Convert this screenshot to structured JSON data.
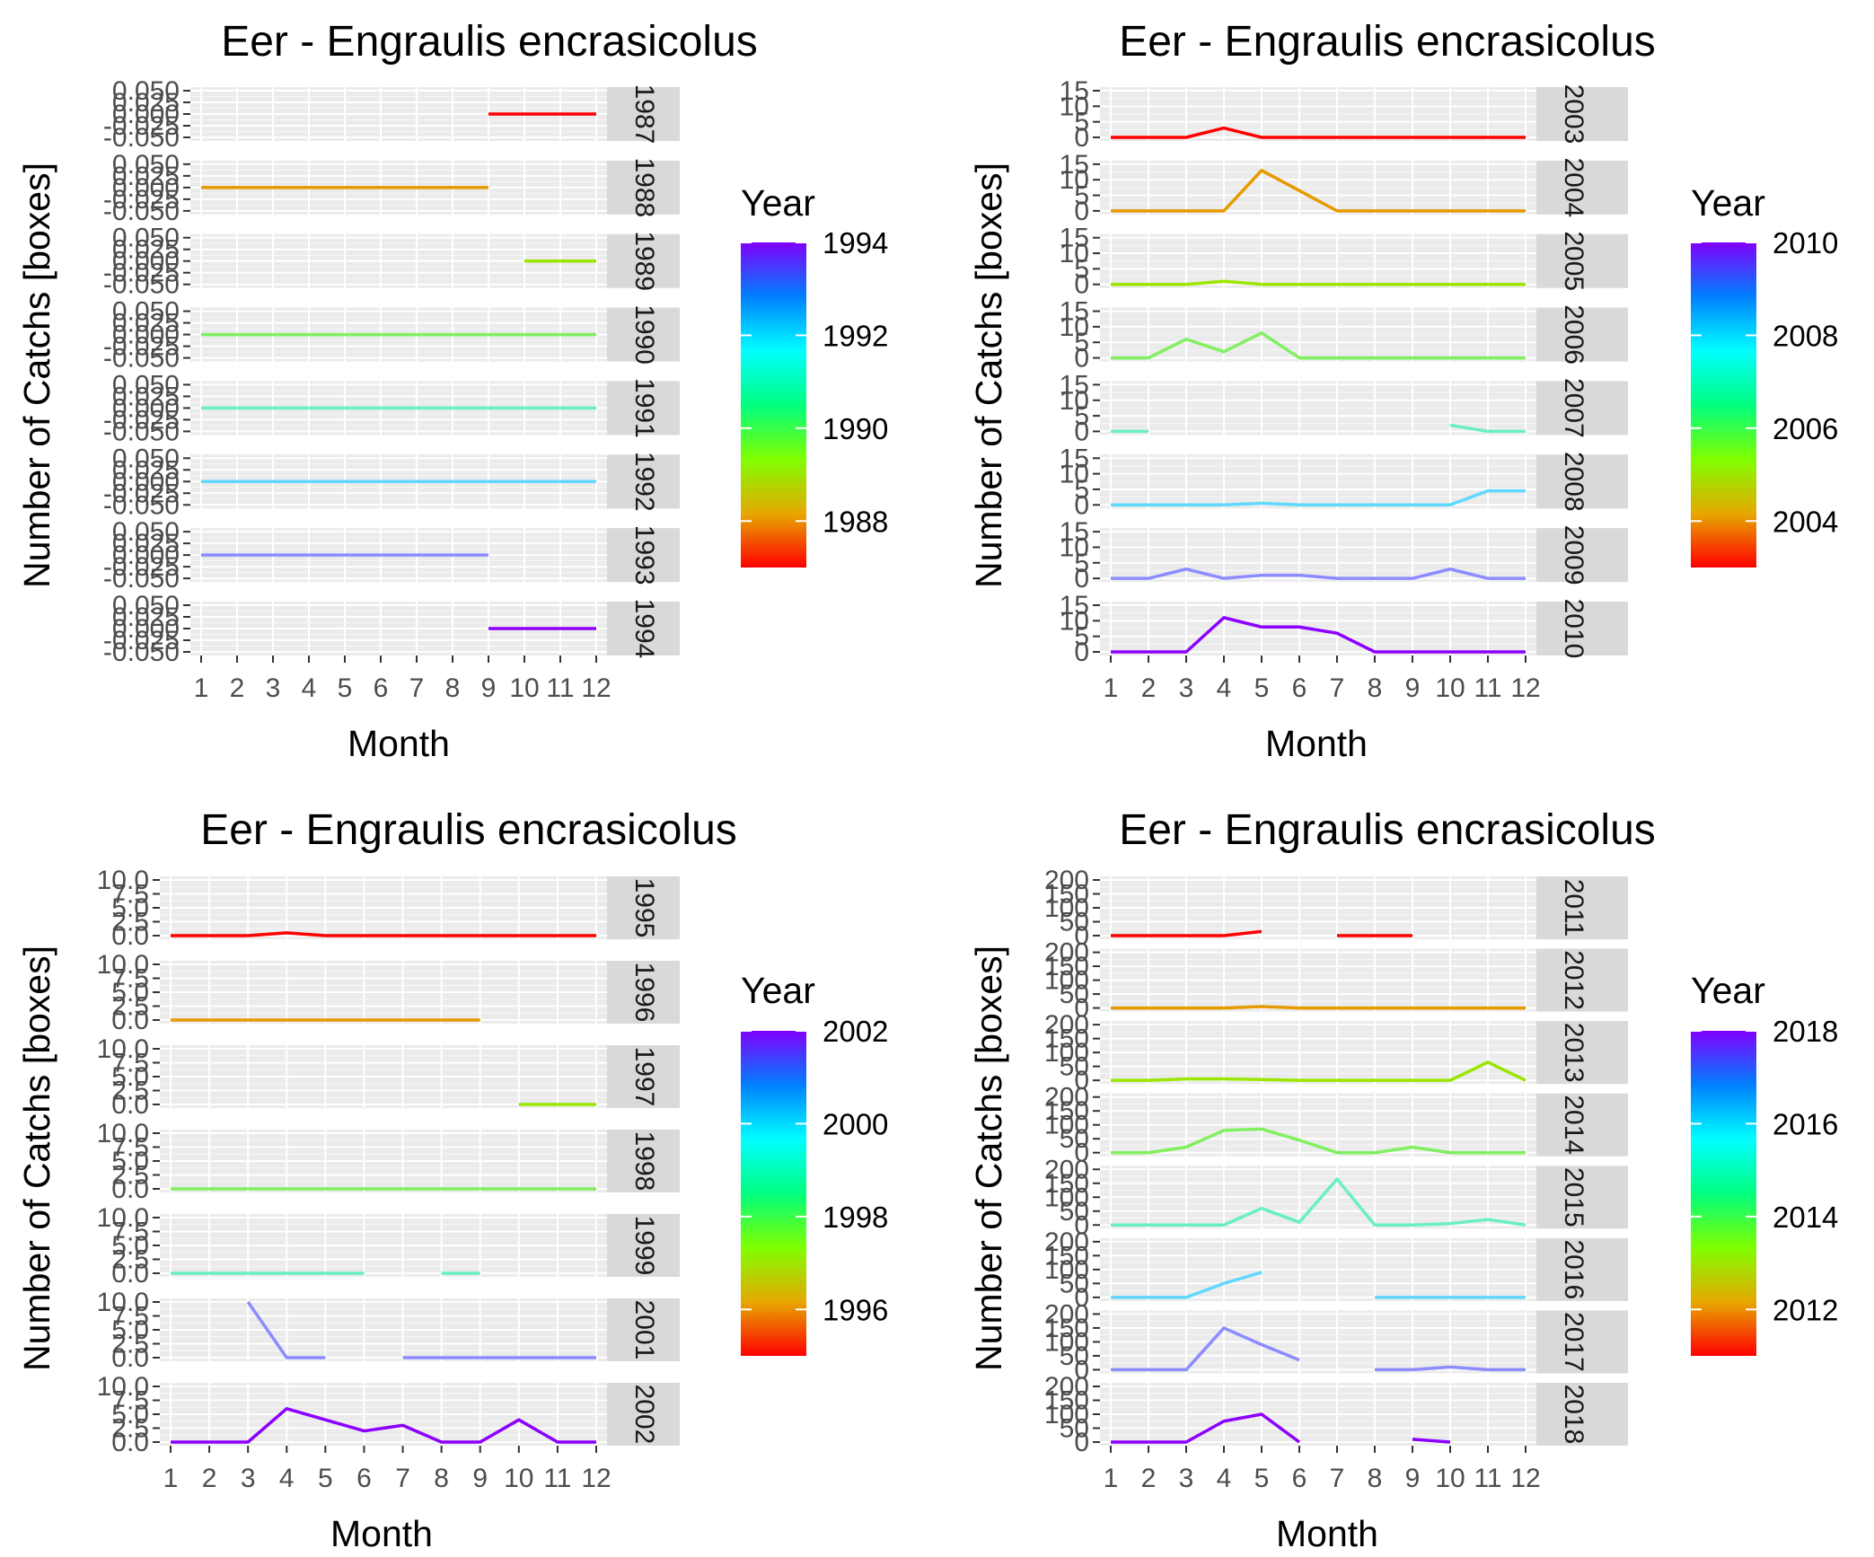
{
  "chart_data": [
    {
      "type": "line",
      "title": "Eer - Engraulis encrasicolus",
      "xlabel": "Month",
      "ylabel": "Number of Catchs [boxes]",
      "x": [
        1,
        2,
        3,
        4,
        5,
        6,
        7,
        8,
        9,
        10,
        11,
        12
      ],
      "x_tick_labels": [
        "1",
        "2",
        "3",
        "4",
        "5",
        "6",
        "7",
        "8",
        "9",
        "10",
        "11",
        "12"
      ],
      "ylim": [
        -0.05,
        0.05
      ],
      "y_ticks": [
        -0.05,
        -0.025,
        0,
        0.025,
        0.05
      ],
      "y_tick_labels": [
        "-0.050",
        "-0.025",
        "0.000",
        "0.025",
        "0.050"
      ],
      "facet_by": "year",
      "legend": {
        "title": "Year",
        "position": "right",
        "range": [
          1987,
          1994
        ],
        "ticks": [
          "1988",
          "1990",
          "1992",
          "1994"
        ],
        "tick_values": [
          1988,
          1990,
          1992,
          1994
        ],
        "palette": [
          "#ff0000",
          "#e6a800",
          "#80ff00",
          "#00ff80",
          "#00ffff",
          "#0080ff",
          "#8000ff"
        ]
      },
      "series": [
        {
          "name": "1987",
          "color": "#ff0000",
          "values": [
            null,
            null,
            null,
            null,
            null,
            null,
            null,
            null,
            0,
            0,
            0,
            0
          ]
        },
        {
          "name": "1988",
          "color": "#e69a00",
          "values": [
            0,
            0,
            0,
            0,
            0,
            0,
            0,
            0,
            0,
            null,
            null,
            null
          ]
        },
        {
          "name": "1989",
          "color": "#9ae600",
          "values": [
            null,
            null,
            null,
            null,
            null,
            null,
            null,
            null,
            null,
            0,
            0,
            0
          ]
        },
        {
          "name": "1990",
          "color": "#80f060",
          "values": [
            0,
            0,
            0,
            0,
            0,
            0,
            0,
            0,
            0,
            0,
            0,
            0
          ]
        },
        {
          "name": "1991",
          "color": "#6af0c0",
          "values": [
            0,
            0,
            0,
            0,
            0,
            0,
            0,
            0,
            0,
            0,
            0,
            0
          ]
        },
        {
          "name": "1992",
          "color": "#60d8ff",
          "values": [
            0,
            0,
            0,
            0,
            0,
            0,
            0,
            0,
            0,
            0,
            0,
            0
          ]
        },
        {
          "name": "1993",
          "color": "#8c8cff",
          "values": [
            0,
            0,
            0,
            0,
            0,
            0,
            0,
            0,
            0,
            null,
            null,
            null
          ]
        },
        {
          "name": "1994",
          "color": "#8c00ff",
          "values": [
            null,
            null,
            null,
            null,
            null,
            null,
            null,
            null,
            0,
            0,
            0,
            0
          ]
        }
      ]
    },
    {
      "type": "line",
      "title": "Eer - Engraulis encrasicolus",
      "xlabel": "Month",
      "ylabel": "Number of Catchs [boxes]",
      "x": [
        1,
        2,
        3,
        4,
        5,
        6,
        7,
        8,
        9,
        10,
        11,
        12
      ],
      "x_tick_labels": [
        "1",
        "2",
        "3",
        "4",
        "5",
        "6",
        "7",
        "8",
        "9",
        "10",
        "11",
        "12"
      ],
      "ylim": [
        0,
        15
      ],
      "y_ticks": [
        0,
        5,
        10,
        15
      ],
      "y_tick_labels": [
        "0",
        "5",
        "10",
        "15"
      ],
      "facet_by": "year",
      "legend": {
        "title": "Year",
        "position": "right",
        "range": [
          2003,
          2010
        ],
        "ticks": [
          "2004",
          "2006",
          "2008",
          "2010"
        ],
        "tick_values": [
          2004,
          2006,
          2008,
          2010
        ],
        "palette": [
          "#ff0000",
          "#e6a800",
          "#80ff00",
          "#00ff80",
          "#00ffff",
          "#0080ff",
          "#8000ff"
        ]
      },
      "series": [
        {
          "name": "2003",
          "color": "#ff0000",
          "values": [
            0,
            0,
            0,
            3,
            0,
            0,
            0,
            0,
            0,
            0,
            0,
            0
          ]
        },
        {
          "name": "2004",
          "color": "#e69a00",
          "values": [
            0,
            0,
            0,
            0,
            13,
            6.5,
            0,
            0,
            0,
            0,
            0,
            0
          ]
        },
        {
          "name": "2005",
          "color": "#9ae600",
          "values": [
            0,
            0,
            0,
            1,
            0,
            0,
            0,
            0,
            0,
            0,
            0,
            0
          ]
        },
        {
          "name": "2006",
          "color": "#80f060",
          "values": [
            0,
            0,
            6,
            2,
            8,
            0,
            0,
            0,
            0,
            0,
            0,
            0
          ]
        },
        {
          "name": "2007",
          "color": "#6af0c0",
          "values": [
            0,
            0,
            null,
            null,
            null,
            null,
            null,
            null,
            null,
            2,
            0,
            0
          ]
        },
        {
          "name": "2008",
          "color": "#60d8ff",
          "values": [
            0,
            0,
            0,
            0,
            0.5,
            0,
            0,
            0,
            0,
            0,
            4.5,
            4.5
          ]
        },
        {
          "name": "2009",
          "color": "#8c8cff",
          "values": [
            0,
            0,
            3,
            0,
            1,
            1,
            0,
            0,
            0,
            3,
            0,
            0
          ]
        },
        {
          "name": "2010",
          "color": "#8c00ff",
          "values": [
            0,
            0,
            0,
            11,
            8,
            8,
            6,
            0,
            0,
            0,
            0,
            0
          ]
        }
      ]
    },
    {
      "type": "line",
      "title": "Eer - Engraulis encrasicolus",
      "xlabel": "Month",
      "ylabel": "Number of Catchs [boxes]",
      "x": [
        1,
        2,
        3,
        4,
        5,
        6,
        7,
        8,
        9,
        10,
        11,
        12
      ],
      "x_tick_labels": [
        "1",
        "2",
        "3",
        "4",
        "5",
        "6",
        "7",
        "8",
        "9",
        "10",
        "11",
        "12"
      ],
      "ylim": [
        0,
        10
      ],
      "y_ticks": [
        0,
        2.5,
        5,
        7.5,
        10
      ],
      "y_tick_labels": [
        "0.0",
        "2.5",
        "5.0",
        "7.5",
        "10.0"
      ],
      "facet_by": "year",
      "legend": {
        "title": "Year",
        "position": "right",
        "range": [
          1995,
          2002
        ],
        "ticks": [
          "1996",
          "1998",
          "2000",
          "2002"
        ],
        "tick_values": [
          1996,
          1998,
          2000,
          2002
        ],
        "palette": [
          "#ff0000",
          "#e6a800",
          "#80ff00",
          "#00ff80",
          "#00ffff",
          "#0080ff",
          "#8000ff"
        ]
      },
      "series": [
        {
          "name": "1995",
          "color": "#ff0000",
          "values": [
            0,
            0,
            0,
            0.5,
            0,
            0,
            0,
            0,
            0,
            0,
            0,
            0
          ]
        },
        {
          "name": "1996",
          "color": "#e69a00",
          "values": [
            0,
            0,
            0,
            0,
            0,
            0,
            0,
            0,
            0,
            null,
            null,
            null
          ]
        },
        {
          "name": "1997",
          "color": "#9ae600",
          "values": [
            null,
            null,
            null,
            null,
            null,
            null,
            null,
            null,
            null,
            0,
            0,
            0
          ]
        },
        {
          "name": "1998",
          "color": "#80f060",
          "values": [
            0,
            0,
            0,
            0,
            0,
            0,
            0,
            0,
            0,
            0,
            0,
            0
          ]
        },
        {
          "name": "1999",
          "color": "#6af0c0",
          "values": [
            0,
            0,
            0,
            0,
            0,
            0,
            null,
            0,
            0,
            null,
            null,
            null
          ]
        },
        {
          "name": "2001",
          "color": "#8c8cff",
          "values": [
            null,
            null,
            10,
            0,
            0,
            null,
            0,
            0,
            0,
            0,
            0,
            0
          ]
        },
        {
          "name": "2002",
          "color": "#8c00ff",
          "values": [
            0,
            0,
            0,
            6,
            4,
            2,
            3,
            0,
            0,
            4,
            0,
            0
          ]
        }
      ]
    },
    {
      "type": "line",
      "title": "Eer - Engraulis encrasicolus",
      "xlabel": "Month",
      "ylabel": "Number of Catchs [boxes]",
      "x": [
        1,
        2,
        3,
        4,
        5,
        6,
        7,
        8,
        9,
        10,
        11,
        12
      ],
      "x_tick_labels": [
        "1",
        "2",
        "3",
        "4",
        "5",
        "6",
        "7",
        "8",
        "9",
        "10",
        "11",
        "12"
      ],
      "ylim": [
        0,
        200
      ],
      "y_ticks": [
        0,
        50,
        100,
        150,
        200
      ],
      "y_tick_labels": [
        "0",
        "50",
        "100",
        "150",
        "200"
      ],
      "facet_by": "year",
      "legend": {
        "title": "Year",
        "position": "right",
        "range": [
          2011,
          2018
        ],
        "ticks": [
          "2012",
          "2014",
          "2016",
          "2018"
        ],
        "tick_values": [
          2012,
          2014,
          2016,
          2018
        ],
        "palette": [
          "#ff0000",
          "#e6a800",
          "#80ff00",
          "#00ff80",
          "#00ffff",
          "#0080ff",
          "#8000ff"
        ]
      },
      "series": [
        {
          "name": "2011",
          "color": "#ff0000",
          "values": [
            0,
            0,
            0,
            0,
            15,
            null,
            0,
            0,
            0,
            null,
            null,
            null
          ]
        },
        {
          "name": "2012",
          "color": "#e69a00",
          "values": [
            0,
            0,
            0,
            0,
            5,
            0,
            0,
            0,
            0,
            0,
            0,
            0
          ]
        },
        {
          "name": "2013",
          "color": "#9ae600",
          "values": [
            0,
            0,
            5,
            5,
            3,
            0,
            0,
            0,
            0,
            0,
            65,
            0
          ]
        },
        {
          "name": "2014",
          "color": "#80f060",
          "values": [
            0,
            0,
            20,
            80,
            85,
            45,
            0,
            0,
            20,
            0,
            0,
            0
          ]
        },
        {
          "name": "2015",
          "color": "#6af0c0",
          "values": [
            0,
            0,
            0,
            0,
            60,
            10,
            165,
            0,
            0,
            5,
            20,
            0
          ]
        },
        {
          "name": "2016",
          "color": "#60d8ff",
          "values": [
            0,
            0,
            0,
            50,
            90,
            null,
            null,
            0,
            0,
            0,
            0,
            0
          ]
        },
        {
          "name": "2017",
          "color": "#8c8cff",
          "values": [
            0,
            0,
            0,
            150,
            90,
            35,
            null,
            0,
            0,
            10,
            0,
            0
          ]
        },
        {
          "name": "2018",
          "color": "#8c00ff",
          "values": [
            0,
            0,
            0,
            75,
            100,
            0,
            null,
            null,
            10,
            0,
            null,
            null
          ]
        }
      ]
    }
  ]
}
